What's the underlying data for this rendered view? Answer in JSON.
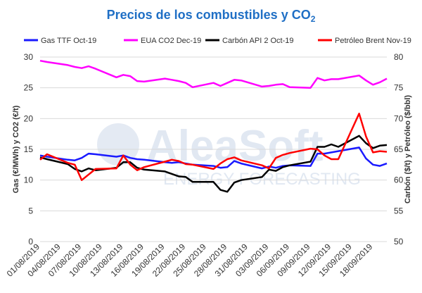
{
  "chart_data": {
    "type": "line",
    "title": "Precios de los combustibles y CO",
    "title_subscript": "2",
    "watermark": {
      "brand": "AleaSoft",
      "tagline": "ENERGY FORECASTING"
    },
    "y_left": {
      "label": "Gas (€/MWh) y CO2 (€/t)",
      "min": 0,
      "max": 30,
      "ticks": [
        0,
        5,
        10,
        15,
        20,
        25,
        30
      ]
    },
    "y_right": {
      "label": "Carbón ($/t) y Petróleo ($/bbl)",
      "min": 50,
      "max": 80,
      "ticks": [
        50,
        55,
        60,
        65,
        70,
        75,
        80
      ]
    },
    "x_ticks": [
      "01/08/2019",
      "04/08/2019",
      "07/08/2019",
      "10/08/2019",
      "13/08/2019",
      "16/08/2019",
      "19/08/2019",
      "22/08/2019",
      "25/08/2019",
      "28/08/2019",
      "31/08/2019",
      "03/09/2019",
      "06/09/2019",
      "09/09/2019",
      "12/09/2019",
      "15/09/2019",
      "18/09/2019"
    ],
    "x_start": "2019-08-01",
    "x_end": "2019-09-20",
    "grid": true,
    "legend_position": "top",
    "series": [
      {
        "name": "Gas TTF Oct-19",
        "axis": "left",
        "color": "#1a1aff",
        "points": [
          [
            "2019-08-01",
            14.0
          ],
          [
            "2019-08-02",
            13.8
          ],
          [
            "2019-08-05",
            13.3
          ],
          [
            "2019-08-06",
            13.2
          ],
          [
            "2019-08-07",
            13.6
          ],
          [
            "2019-08-08",
            14.3
          ],
          [
            "2019-08-09",
            14.2
          ],
          [
            "2019-08-12",
            13.8
          ],
          [
            "2019-08-13",
            14.0
          ],
          [
            "2019-08-14",
            13.6
          ],
          [
            "2019-08-15",
            13.4
          ],
          [
            "2019-08-16",
            13.3
          ],
          [
            "2019-08-19",
            12.9
          ],
          [
            "2019-08-20",
            12.8
          ],
          [
            "2019-08-21",
            12.9
          ],
          [
            "2019-08-22",
            12.7
          ],
          [
            "2019-08-23",
            12.5
          ],
          [
            "2019-08-26",
            12.3
          ],
          [
            "2019-08-27",
            12.0
          ],
          [
            "2019-08-28",
            12.1
          ],
          [
            "2019-08-29",
            13.1
          ],
          [
            "2019-08-30",
            12.7
          ],
          [
            "2019-09-02",
            11.9
          ],
          [
            "2019-09-03",
            12.2
          ],
          [
            "2019-09-04",
            12.0
          ],
          [
            "2019-09-05",
            12.3
          ],
          [
            "2019-09-06",
            12.4
          ],
          [
            "2019-09-09",
            12.3
          ],
          [
            "2019-09-10",
            14.3
          ],
          [
            "2019-09-11",
            14.3
          ],
          [
            "2019-09-12",
            14.5
          ],
          [
            "2019-09-13",
            14.7
          ],
          [
            "2019-09-16",
            15.3
          ],
          [
            "2019-09-17",
            13.5
          ],
          [
            "2019-09-18",
            12.5
          ],
          [
            "2019-09-19",
            12.3
          ],
          [
            "2019-09-20",
            12.7
          ]
        ]
      },
      {
        "name": "EUA CO2 Dec-19",
        "axis": "left",
        "color": "#ff00ff",
        "points": [
          [
            "2019-08-01",
            29.4
          ],
          [
            "2019-08-02",
            29.2
          ],
          [
            "2019-08-05",
            28.7
          ],
          [
            "2019-08-06",
            28.4
          ],
          [
            "2019-08-07",
            28.2
          ],
          [
            "2019-08-08",
            28.5
          ],
          [
            "2019-08-09",
            28.1
          ],
          [
            "2019-08-12",
            26.7
          ],
          [
            "2019-08-13",
            27.1
          ],
          [
            "2019-08-14",
            26.9
          ],
          [
            "2019-08-15",
            26.1
          ],
          [
            "2019-08-16",
            26.0
          ],
          [
            "2019-08-19",
            26.5
          ],
          [
            "2019-08-20",
            26.3
          ],
          [
            "2019-08-21",
            26.1
          ],
          [
            "2019-08-22",
            25.8
          ],
          [
            "2019-08-23",
            25.1
          ],
          [
            "2019-08-26",
            25.8
          ],
          [
            "2019-08-27",
            25.3
          ],
          [
            "2019-08-28",
            25.8
          ],
          [
            "2019-08-29",
            26.3
          ],
          [
            "2019-08-30",
            26.2
          ],
          [
            "2019-09-02",
            25.2
          ],
          [
            "2019-09-03",
            25.3
          ],
          [
            "2019-09-04",
            25.5
          ],
          [
            "2019-09-05",
            25.6
          ],
          [
            "2019-09-06",
            25.1
          ],
          [
            "2019-09-09",
            25.0
          ],
          [
            "2019-09-10",
            26.6
          ],
          [
            "2019-09-11",
            26.2
          ],
          [
            "2019-09-12",
            26.4
          ],
          [
            "2019-09-13",
            26.4
          ],
          [
            "2019-09-16",
            27.0
          ],
          [
            "2019-09-17",
            26.2
          ],
          [
            "2019-09-18",
            25.5
          ],
          [
            "2019-09-19",
            25.9
          ],
          [
            "2019-09-20",
            26.5
          ]
        ]
      },
      {
        "name": "Carbón API 2 Oct-19",
        "axis": "right",
        "color": "#000000",
        "points": [
          [
            "2019-08-01",
            63.7
          ],
          [
            "2019-08-02",
            63.4
          ],
          [
            "2019-08-05",
            62.6
          ],
          [
            "2019-08-06",
            61.8
          ],
          [
            "2019-08-07",
            61.4
          ],
          [
            "2019-08-08",
            61.9
          ],
          [
            "2019-08-09",
            61.6
          ],
          [
            "2019-08-12",
            62.0
          ],
          [
            "2019-08-13",
            62.9
          ],
          [
            "2019-08-14",
            62.9
          ],
          [
            "2019-08-15",
            62.0
          ],
          [
            "2019-08-16",
            61.7
          ],
          [
            "2019-08-19",
            61.4
          ],
          [
            "2019-08-20",
            61.0
          ],
          [
            "2019-08-21",
            60.6
          ],
          [
            "2019-08-22",
            60.5
          ],
          [
            "2019-08-23",
            59.7
          ],
          [
            "2019-08-26",
            59.7
          ],
          [
            "2019-08-27",
            58.4
          ],
          [
            "2019-08-28",
            58.1
          ],
          [
            "2019-08-29",
            59.6
          ],
          [
            "2019-08-30",
            60.0
          ],
          [
            "2019-09-02",
            60.5
          ],
          [
            "2019-09-03",
            61.7
          ],
          [
            "2019-09-04",
            61.5
          ],
          [
            "2019-09-05",
            62.1
          ],
          [
            "2019-09-06",
            62.4
          ],
          [
            "2019-09-09",
            63.0
          ],
          [
            "2019-09-10",
            65.4
          ],
          [
            "2019-09-11",
            65.4
          ],
          [
            "2019-09-12",
            65.8
          ],
          [
            "2019-09-13",
            65.4
          ],
          [
            "2019-09-16",
            67.2
          ],
          [
            "2019-09-17",
            66.0
          ],
          [
            "2019-09-18",
            65.2
          ],
          [
            "2019-09-19",
            65.6
          ],
          [
            "2019-09-20",
            65.7
          ]
        ]
      },
      {
        "name": "Petróleo Brent Nov-19",
        "axis": "right",
        "color": "#ff0000",
        "points": [
          [
            "2019-08-01",
            63.3
          ],
          [
            "2019-08-02",
            64.2
          ],
          [
            "2019-08-05",
            62.8
          ],
          [
            "2019-08-06",
            62.5
          ],
          [
            "2019-08-07",
            60.0
          ],
          [
            "2019-08-08",
            60.9
          ],
          [
            "2019-08-09",
            61.8
          ],
          [
            "2019-08-12",
            61.9
          ],
          [
            "2019-08-13",
            64.0
          ],
          [
            "2019-08-14",
            62.5
          ],
          [
            "2019-08-15",
            61.6
          ],
          [
            "2019-08-16",
            62.1
          ],
          [
            "2019-08-19",
            63.0
          ],
          [
            "2019-08-20",
            63.3
          ],
          [
            "2019-08-21",
            63.1
          ],
          [
            "2019-08-22",
            62.6
          ],
          [
            "2019-08-23",
            62.5
          ],
          [
            "2019-08-26",
            61.8
          ],
          [
            "2019-08-27",
            62.7
          ],
          [
            "2019-08-28",
            63.4
          ],
          [
            "2019-08-29",
            63.7
          ],
          [
            "2019-08-30",
            63.2
          ],
          [
            "2019-09-02",
            62.4
          ],
          [
            "2019-09-03",
            61.9
          ],
          [
            "2019-09-04",
            63.6
          ],
          [
            "2019-09-05",
            64.1
          ],
          [
            "2019-09-06",
            64.4
          ],
          [
            "2019-09-09",
            65.1
          ],
          [
            "2019-09-10",
            65.0
          ],
          [
            "2019-09-11",
            64.0
          ],
          [
            "2019-09-12",
            63.4
          ],
          [
            "2019-09-13",
            63.4
          ],
          [
            "2019-09-16",
            70.8
          ],
          [
            "2019-09-17",
            67.1
          ],
          [
            "2019-09-18",
            64.5
          ],
          [
            "2019-09-19",
            64.7
          ],
          [
            "2019-09-20",
            64.6
          ]
        ]
      }
    ]
  }
}
